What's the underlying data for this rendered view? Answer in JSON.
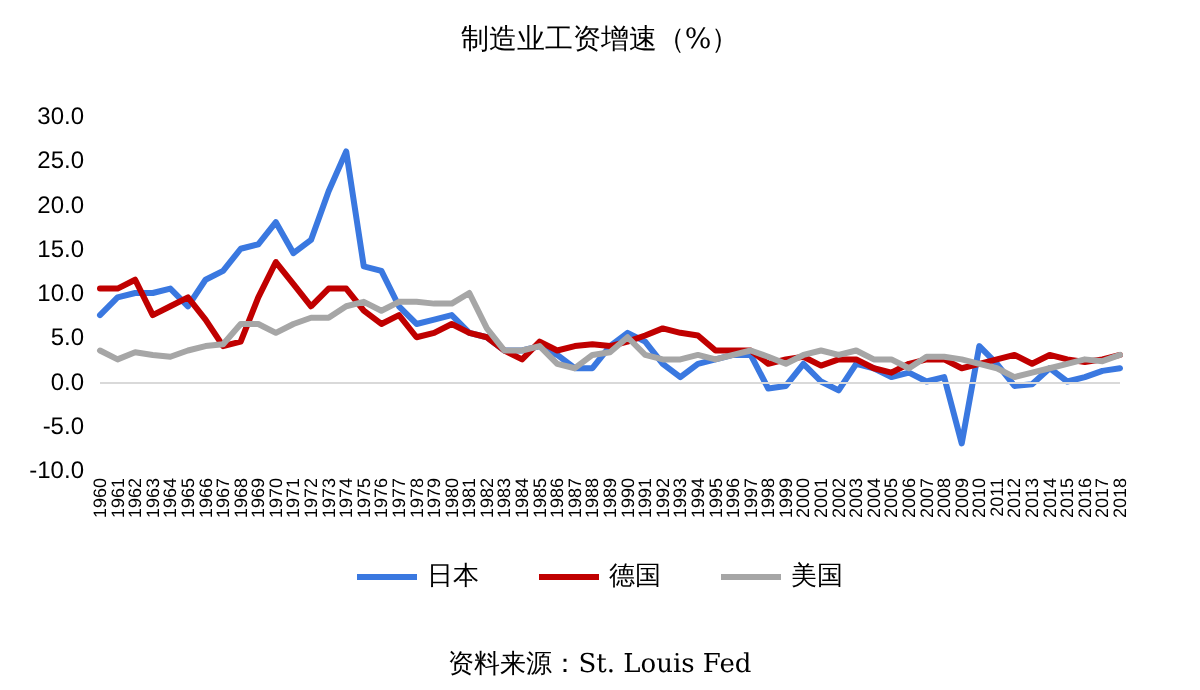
{
  "chart_data": {
    "type": "line",
    "title": "制造业工资增速（%）",
    "categories": [
      "1960",
      "1961",
      "1962",
      "1963",
      "1964",
      "1965",
      "1966",
      "1967",
      "1968",
      "1969",
      "1970",
      "1971",
      "1972",
      "1973",
      "1974",
      "1975",
      "1976",
      "1977",
      "1978",
      "1979",
      "1980",
      "1981",
      "1982",
      "1983",
      "1984",
      "1985",
      "1986",
      "1987",
      "1988",
      "1989",
      "1990",
      "1991",
      "1992",
      "1993",
      "1994",
      "1995",
      "1996",
      "1997",
      "1998",
      "1999",
      "2000",
      "2001",
      "2002",
      "2003",
      "2004",
      "2005",
      "2006",
      "2007",
      "2008",
      "2009",
      "2010",
      "2011",
      "2012",
      "2013",
      "2014",
      "2015",
      "2016",
      "2017",
      "2018"
    ],
    "series": [
      {
        "name": "日本",
        "color": "#3a78e0",
        "values": [
          7.5,
          9.5,
          10,
          10,
          10.5,
          8.5,
          11.5,
          12.5,
          15,
          15.5,
          18,
          14.5,
          16,
          21.5,
          26,
          13,
          12.5,
          8.5,
          6.5,
          7,
          7.5,
          5.5,
          5,
          3.5,
          3.5,
          4,
          3,
          1.5,
          1.5,
          4,
          5.5,
          4.5,
          2,
          0.5,
          2,
          2.5,
          3,
          3,
          -0.8,
          -0.5,
          2,
          0,
          -1,
          2,
          1.5,
          0.5,
          1,
          0,
          0.5,
          -7,
          4,
          2,
          -0.5,
          -0.3,
          1.5,
          0,
          0.5,
          1.2,
          1.5
        ]
      },
      {
        "name": "德国",
        "color": "#c00000",
        "values": [
          10.5,
          10.5,
          11.5,
          7.5,
          8.5,
          9.5,
          7,
          4,
          4.5,
          9.5,
          13.5,
          11,
          8.5,
          10.5,
          10.5,
          8,
          6.5,
          7.5,
          5,
          5.5,
          6.5,
          5.5,
          5,
          3.5,
          2.5,
          4.5,
          3.5,
          4,
          4.2,
          4,
          4.5,
          5.2,
          6,
          5.5,
          5.2,
          3.5,
          3.5,
          3.5,
          2,
          2.5,
          2.8,
          1.8,
          2.5,
          2.5,
          1.5,
          1,
          2,
          2.5,
          2.5,
          1.5,
          2,
          2.5,
          3,
          2,
          3,
          2.5,
          2.2,
          2.5,
          3
        ]
      },
      {
        "name": "美国",
        "color": "#a6a6a6",
        "values": [
          3.5,
          2.5,
          3.3,
          3,
          2.8,
          3.5,
          4,
          4.2,
          6.5,
          6.5,
          5.5,
          6.5,
          7.2,
          7.2,
          8.5,
          9,
          8,
          9,
          9,
          8.8,
          8.8,
          10,
          6,
          3.5,
          3.5,
          4,
          2,
          1.5,
          3,
          3.3,
          5,
          3,
          2.5,
          2.5,
          3,
          2.5,
          3,
          3.5,
          2.8,
          2,
          3,
          3.5,
          3,
          3.5,
          2.5,
          2.5,
          1.5,
          2.8,
          2.8,
          2.5,
          2,
          1.5,
          0.5,
          1,
          1.5,
          2,
          2.5,
          2.3,
          3
        ]
      }
    ],
    "ylim": [
      -10,
      30
    ],
    "yticks": [
      {
        "value": -10,
        "label": "-10.0"
      },
      {
        "value": -5,
        "label": "-5.0"
      },
      {
        "value": 0,
        "label": "0.0"
      },
      {
        "value": 5,
        "label": "5.0"
      },
      {
        "value": 10,
        "label": "10.0"
      },
      {
        "value": 15,
        "label": "15.0"
      },
      {
        "value": 20,
        "label": "20.0"
      },
      {
        "value": 25,
        "label": "25.0"
      },
      {
        "value": 30,
        "label": "30.0"
      }
    ],
    "grid": false,
    "legend": "bottom",
    "line_style": "solid",
    "ref_lines": [
      {
        "axis": "y",
        "value": 0,
        "color": "#d9d9d9"
      }
    ],
    "annotations": [
      "资料来源：St. Louis Fed"
    ]
  }
}
